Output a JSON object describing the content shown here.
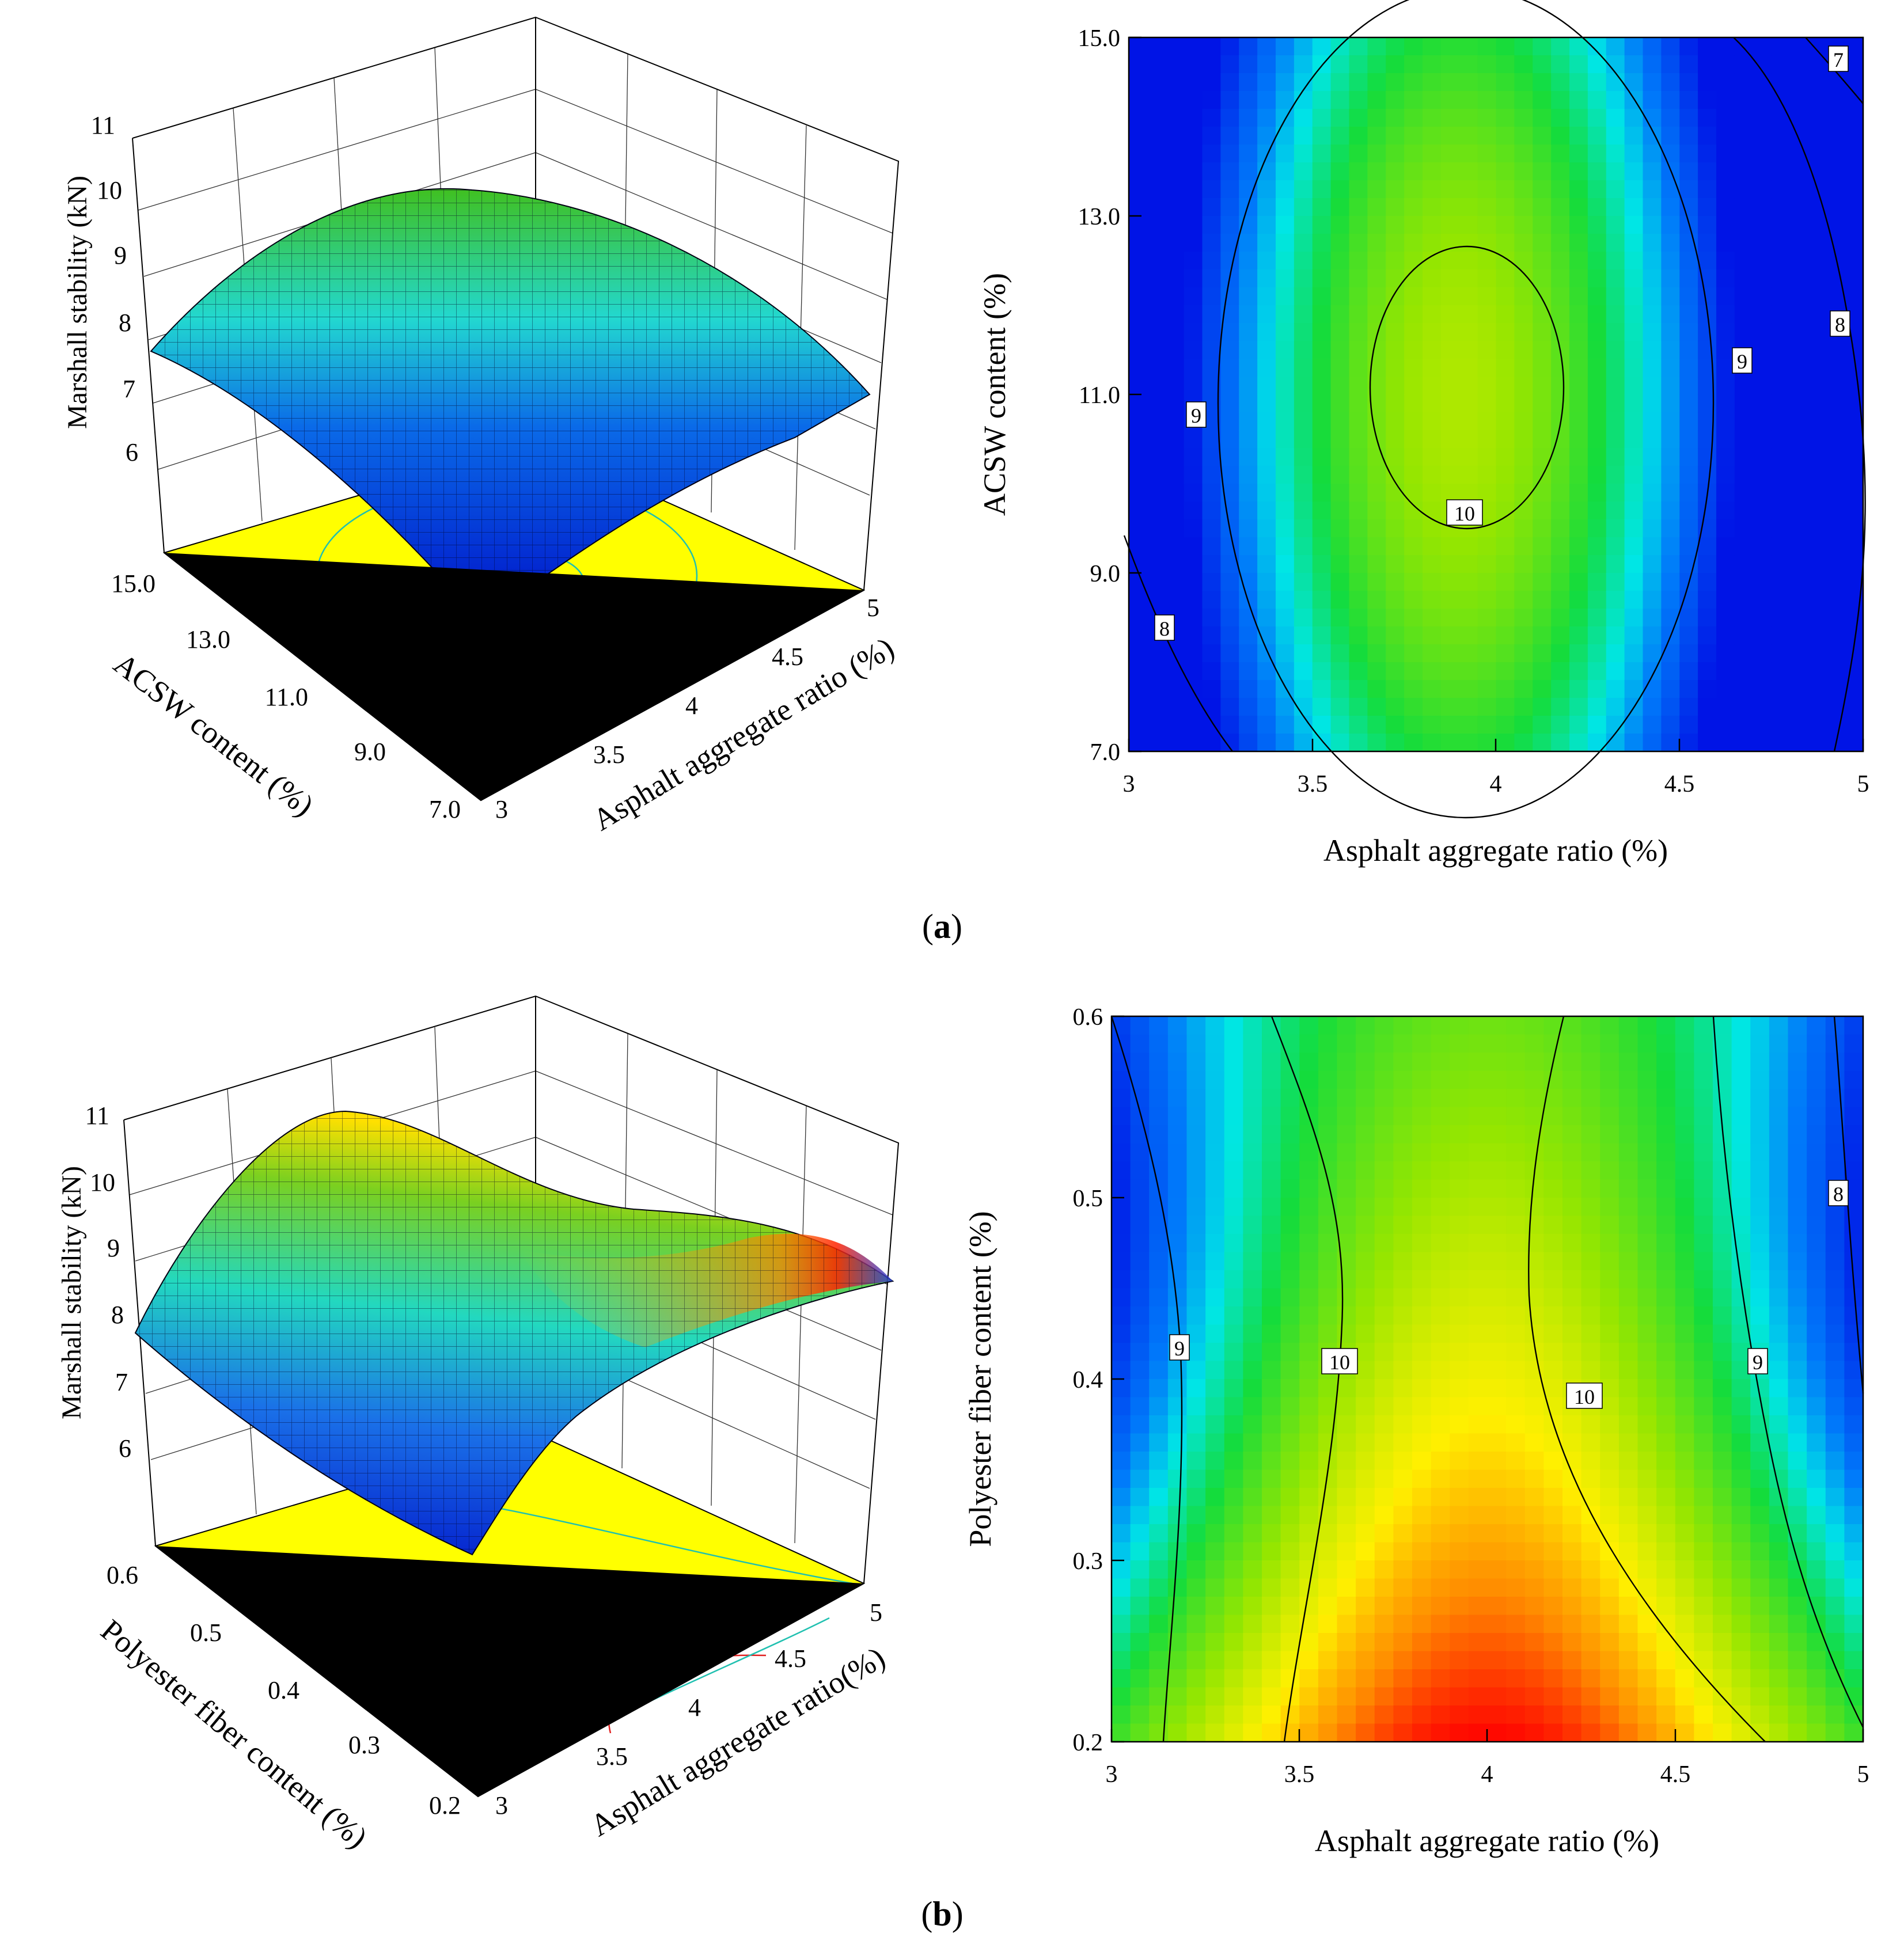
{
  "figure": {
    "captions": [
      "(a)",
      "(b)"
    ],
    "caption_letters": [
      "a",
      "b"
    ]
  },
  "chart_data": [
    {
      "type": "surface3d",
      "panel": "a-surface",
      "title": "",
      "zlabel": "Marshall stability (kN)",
      "ylabel": "ACSW  content (%)",
      "xlabel": "Asphalt aggregate ratio (%)",
      "z_ticks": [
        "6",
        "7",
        "8",
        "9",
        "10",
        "11"
      ],
      "y_ticks": [
        "15.0",
        "13.0",
        "11.0",
        "9.0",
        "7.0"
      ],
      "x_ticks": [
        "3",
        "3.5",
        "4",
        "4.5",
        "5"
      ],
      "zlim": [
        5,
        11
      ],
      "colors": {
        "floor": "#ffff00",
        "low": "#0022dd",
        "mid": "#00e0e0",
        "high": "#22cc22"
      }
    },
    {
      "type": "heatmap",
      "panel": "a-contour",
      "title": "",
      "xlabel": "Asphalt aggregate ratio (%)",
      "ylabel": "ACSW  content (%)",
      "x_ticks": [
        "3",
        "3.5",
        "4",
        "4.5",
        "5"
      ],
      "y_ticks": [
        "15.0",
        "13.0",
        "11.0",
        "9.0",
        "7.0"
      ],
      "xlim": [
        3,
        5
      ],
      "ylim": [
        7,
        15
      ],
      "contour_labels": [
        "7",
        "8",
        "8",
        "9",
        "9",
        "10"
      ],
      "model": {
        "x0": 3.9,
        "y0": 11.0,
        "peak": 10.5,
        "ax": 6.0,
        "ay": 0.05
      }
    },
    {
      "type": "surface3d",
      "panel": "b-surface",
      "title": "",
      "zlabel": "Marshall stability (kN)",
      "ylabel": "Polyester fiber  content (%)",
      "xlabel": "Asphalt aggregate ratio(%)",
      "z_ticks": [
        "6",
        "7",
        "8",
        "9",
        "10",
        "11"
      ],
      "y_ticks": [
        "0.6",
        "0.5",
        "0.4",
        "0.3",
        "0.2"
      ],
      "x_ticks": [
        "3",
        "3.5",
        "4",
        "4.5",
        "5"
      ],
      "zlim": [
        5,
        11
      ],
      "colors": {
        "floor": "#ffff00",
        "low": "#0022dd",
        "mid": "#00e0e0",
        "high": "#ffee00",
        "peak": "#ff2200"
      }
    },
    {
      "type": "heatmap",
      "panel": "b-contour",
      "title": "",
      "xlabel": "Asphalt aggregate ratio (%)",
      "ylabel": "Polyester fiber  content (%)",
      "x_ticks": [
        "3",
        "3.5",
        "4",
        "4.5",
        "5"
      ],
      "y_ticks": [
        "0.6",
        "0.5",
        "0.4",
        "0.3",
        "0.2"
      ],
      "xlim": [
        3,
        5
      ],
      "ylim": [
        0.2,
        0.6
      ],
      "contour_labels": [
        "9",
        "10",
        "10",
        "9",
        "8"
      ],
      "model": {
        "x0": 4.0,
        "peak": 11.2
      }
    }
  ]
}
